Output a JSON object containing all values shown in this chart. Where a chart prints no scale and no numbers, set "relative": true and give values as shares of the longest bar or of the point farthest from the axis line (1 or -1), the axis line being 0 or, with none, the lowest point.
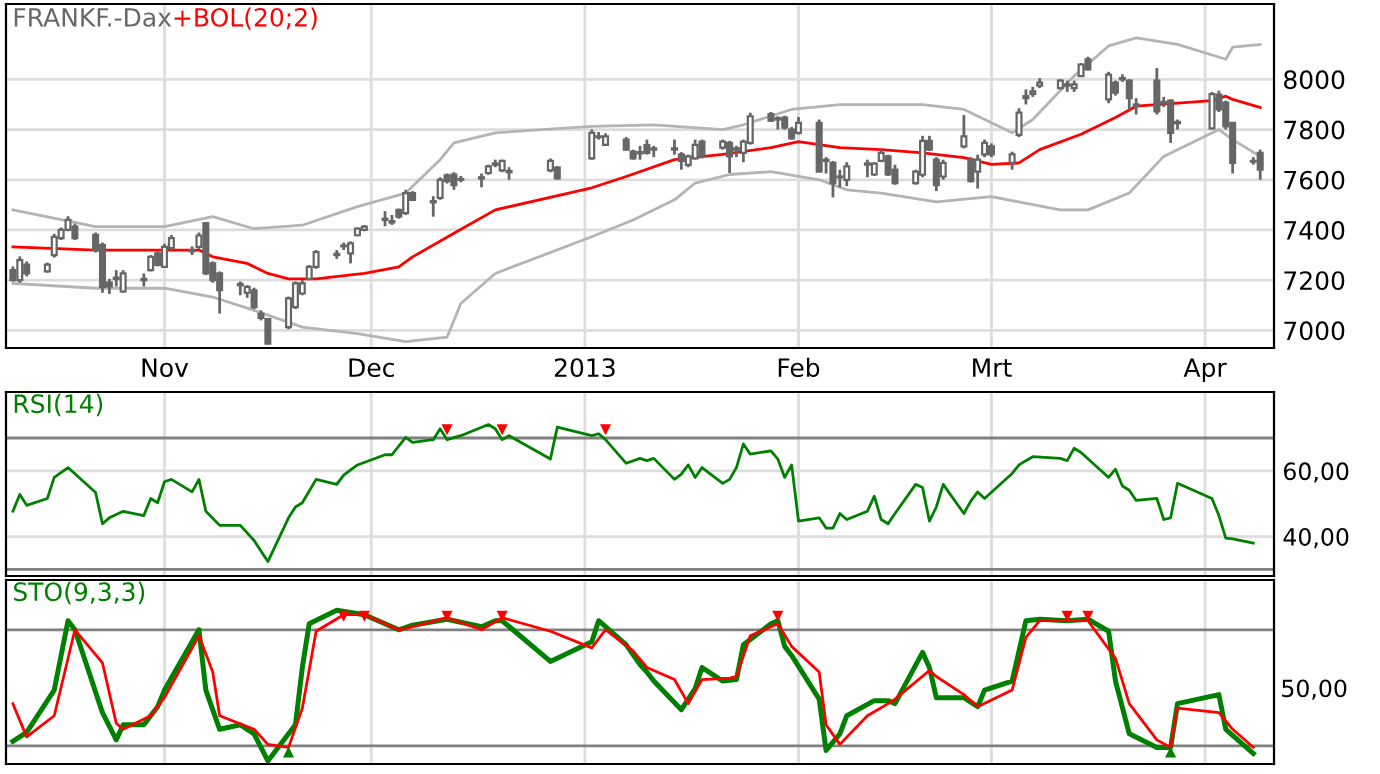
{
  "chart_data": [
    {
      "type": "candlestick",
      "title": "FRANKF.-Dax",
      "legend": "top left",
      "grid": true,
      "xlim": [
        "2012-10-09",
        "2013-04-11"
      ],
      "ylim": [
        6930,
        8300
      ],
      "xticks": [
        {
          "value": "2012-11-01",
          "label": "Nov"
        },
        {
          "value": "2012-12-01",
          "label": "Dec"
        },
        {
          "value": "2013-01-01",
          "label": "2013"
        },
        {
          "value": "2013-02-01",
          "label": "Feb"
        },
        {
          "value": "2013-03-01",
          "label": "Mrt"
        },
        {
          "value": "2013-04-01",
          "label": "Apr"
        }
      ],
      "yticks": [
        7000,
        7200,
        7400,
        7600,
        7800,
        8000
      ],
      "x": [
        "2012-10-10",
        "2012-10-11",
        "2012-10-12",
        "2012-10-15",
        "2012-10-16",
        "2012-10-17",
        "2012-10-18",
        "2012-10-19",
        "2012-10-22",
        "2012-10-23",
        "2012-10-24",
        "2012-10-25",
        "2012-10-26",
        "2012-10-29",
        "2012-10-30",
        "2012-10-31",
        "2012-11-01",
        "2012-11-02",
        "2012-11-05",
        "2012-11-06",
        "2012-11-07",
        "2012-11-08",
        "2012-11-09",
        "2012-11-12",
        "2012-11-13",
        "2012-11-14",
        "2012-11-15",
        "2012-11-16",
        "2012-11-19",
        "2012-11-20",
        "2012-11-21",
        "2012-11-22",
        "2012-11-23",
        "2012-11-26",
        "2012-11-27",
        "2012-11-28",
        "2012-11-29",
        "2012-11-30",
        "2012-12-03",
        "2012-12-04",
        "2012-12-05",
        "2012-12-06",
        "2012-12-07",
        "2012-12-10",
        "2012-12-11",
        "2012-12-12",
        "2012-12-13",
        "2012-12-14",
        "2012-12-17",
        "2012-12-18",
        "2012-12-19",
        "2012-12-20",
        "2012-12-21",
        "2012-12-27",
        "2012-12-28",
        "2013-01-02",
        "2013-01-03",
        "2013-01-04",
        "2013-01-07",
        "2013-01-08",
        "2013-01-09",
        "2013-01-10",
        "2013-01-11",
        "2013-01-14",
        "2013-01-15",
        "2013-01-16",
        "2013-01-17",
        "2013-01-18",
        "2013-01-21",
        "2013-01-22",
        "2013-01-23",
        "2013-01-24",
        "2013-01-25",
        "2013-01-28",
        "2013-01-29",
        "2013-01-30",
        "2013-01-31",
        "2013-02-01",
        "2013-02-04",
        "2013-02-05",
        "2013-02-06",
        "2013-02-07",
        "2013-02-08",
        "2013-02-11",
        "2013-02-12",
        "2013-02-13",
        "2013-02-14",
        "2013-02-15",
        "2013-02-18",
        "2013-02-19",
        "2013-02-20",
        "2013-02-21",
        "2013-02-22",
        "2013-02-25",
        "2013-02-26",
        "2013-02-27",
        "2013-02-28",
        "2013-03-01",
        "2013-03-04",
        "2013-03-05",
        "2013-03-06",
        "2013-03-07",
        "2013-03-08",
        "2013-03-11",
        "2013-03-12",
        "2013-03-13",
        "2013-03-14",
        "2013-03-15",
        "2013-03-18",
        "2013-03-19",
        "2013-03-20",
        "2013-03-21",
        "2013-03-22",
        "2013-03-25",
        "2013-03-26",
        "2013-03-27",
        "2013-03-28",
        "2013-04-02",
        "2013-04-03",
        "2013-04-04",
        "2013-04-05",
        "2013-04-08",
        "2013-04-09"
      ],
      "ohlc": [
        [
          7240,
          7255,
          7195,
          7200
        ],
        [
          7200,
          7295,
          7190,
          7280
        ],
        [
          7262,
          7275,
          7215,
          7227
        ],
        [
          7235,
          7270,
          7230,
          7262
        ],
        [
          7300,
          7385,
          7290,
          7373
        ],
        [
          7368,
          7410,
          7360,
          7400
        ],
        [
          7400,
          7455,
          7395,
          7440
        ],
        [
          7413,
          7425,
          7360,
          7368
        ],
        [
          7381,
          7390,
          7310,
          7320
        ],
        [
          7341,
          7350,
          7150,
          7173
        ],
        [
          7190,
          7205,
          7145,
          7175
        ],
        [
          7205,
          7240,
          7175,
          7210
        ],
        [
          7155,
          7240,
          7150,
          7227
        ],
        [
          7200,
          7227,
          7175,
          7205
        ],
        [
          7240,
          7300,
          7235,
          7293
        ],
        [
          7307,
          7315,
          7255,
          7261
        ],
        [
          7253,
          7345,
          7250,
          7333
        ],
        [
          7328,
          7380,
          7320,
          7368
        ],
        [
          7315,
          7335,
          7300,
          7320
        ],
        [
          7333,
          7390,
          7325,
          7378
        ],
        [
          7427,
          7430,
          7220,
          7227
        ],
        [
          7267,
          7275,
          7190,
          7200
        ],
        [
          7227,
          7235,
          7067,
          7160
        ],
        [
          7180,
          7195,
          7140,
          7185
        ],
        [
          7150,
          7180,
          7130,
          7173
        ],
        [
          7160,
          7170,
          7085,
          7093
        ],
        [
          7066,
          7080,
          7040,
          7050
        ],
        [
          7045,
          7050,
          6945,
          6947
        ],
        [
          7013,
          7135,
          7005,
          7128
        ],
        [
          7093,
          7195,
          7085,
          7187
        ],
        [
          7147,
          7200,
          7140,
          7187
        ],
        [
          7205,
          7260,
          7200,
          7253
        ],
        [
          7253,
          7320,
          7245,
          7312
        ],
        [
          7300,
          7320,
          7285,
          7305
        ],
        [
          7335,
          7350,
          7320,
          7338
        ],
        [
          7307,
          7355,
          7267,
          7347
        ],
        [
          7379,
          7410,
          7375,
          7405
        ],
        [
          7400,
          7420,
          7395,
          7413
        ],
        [
          7440,
          7475,
          7415,
          7445
        ],
        [
          7430,
          7460,
          7420,
          7435
        ],
        [
          7480,
          7485,
          7445,
          7453
        ],
        [
          7467,
          7560,
          7460,
          7547
        ],
        [
          7547,
          7555,
          7515,
          7520
        ],
        [
          7510,
          7535,
          7453,
          7515
        ],
        [
          7528,
          7610,
          7520,
          7600
        ],
        [
          7618,
          7625,
          7585,
          7595
        ],
        [
          7621,
          7630,
          7560,
          7579
        ],
        [
          7600,
          7615,
          7590,
          7603
        ],
        [
          7605,
          7625,
          7570,
          7610
        ],
        [
          7627,
          7660,
          7620,
          7653
        ],
        [
          7660,
          7680,
          7650,
          7665
        ],
        [
          7637,
          7680,
          7630,
          7675
        ],
        [
          7630,
          7650,
          7600,
          7635
        ],
        [
          7637,
          7685,
          7630,
          7675
        ],
        [
          7648,
          7655,
          7600,
          7605
        ],
        [
          7685,
          7800,
          7680,
          7787
        ],
        [
          7770,
          7790,
          7760,
          7773
        ],
        [
          7739,
          7785,
          7735,
          7773
        ],
        [
          7760,
          7770,
          7715,
          7720
        ],
        [
          7712,
          7720,
          7680,
          7685
        ],
        [
          7705,
          7735,
          7680,
          7710
        ],
        [
          7738,
          7760,
          7700,
          7707
        ],
        [
          7720,
          7735,
          7690,
          7725
        ],
        [
          7720,
          7760,
          7700,
          7725
        ],
        [
          7701,
          7710,
          7640,
          7675
        ],
        [
          7659,
          7700,
          7650,
          7693
        ],
        [
          7685,
          7760,
          7680,
          7739
        ],
        [
          7752,
          7760,
          7685,
          7693
        ],
        [
          7728,
          7760,
          7720,
          7752
        ],
        [
          7747,
          7755,
          7627,
          7693
        ],
        [
          7720,
          7735,
          7690,
          7725
        ],
        [
          7707,
          7760,
          7670,
          7752
        ],
        [
          7747,
          7867,
          7740,
          7853
        ],
        [
          7861,
          7870,
          7830,
          7835
        ],
        [
          7840,
          7853,
          7800,
          7845
        ],
        [
          7848,
          7855,
          7800,
          7808
        ],
        [
          7800,
          7810,
          7760,
          7765
        ],
        [
          7787,
          7850,
          7780,
          7827
        ],
        [
          7827,
          7840,
          7630,
          7632
        ],
        [
          7675,
          7690,
          7625,
          7680
        ],
        [
          7667,
          7675,
          7530,
          7587
        ],
        [
          7610,
          7640,
          7570,
          7613
        ],
        [
          7600,
          7670,
          7575,
          7653
        ],
        [
          7660,
          7680,
          7610,
          7665
        ],
        [
          7621,
          7670,
          7615,
          7664
        ],
        [
          7675,
          7720,
          7670,
          7707
        ],
        [
          7693,
          7700,
          7615,
          7621
        ],
        [
          7640,
          7660,
          7580,
          7587
        ],
        [
          7587,
          7640,
          7580,
          7632
        ],
        [
          7620,
          7775,
          7610,
          7755
        ],
        [
          7755,
          7775,
          7715,
          7720
        ],
        [
          7680,
          7690,
          7555,
          7579
        ],
        [
          7613,
          7680,
          7600,
          7667
        ],
        [
          7733,
          7858,
          7725,
          7773
        ],
        [
          7680,
          7690,
          7590,
          7595
        ],
        [
          7632,
          7700,
          7565,
          7680
        ],
        [
          7701,
          7760,
          7690,
          7747
        ],
        [
          7733,
          7745,
          7690,
          7701
        ],
        [
          7667,
          7712,
          7640,
          7701
        ],
        [
          7779,
          7885,
          7770,
          7867
        ],
        [
          7925,
          7960,
          7900,
          7933
        ],
        [
          7942,
          7970,
          7930,
          7952
        ],
        [
          7975,
          8005,
          7965,
          7987
        ],
        [
          7965,
          8000,
          7960,
          7995
        ],
        [
          7975,
          7995,
          7950,
          7980
        ],
        [
          7965,
          7995,
          7950,
          7980
        ],
        [
          8013,
          8065,
          8010,
          8059
        ],
        [
          8080,
          8090,
          8035,
          8040
        ],
        [
          7920,
          8030,
          7905,
          8019
        ],
        [
          7987,
          7995,
          7935,
          7947
        ],
        [
          8000,
          8020,
          7990,
          8005
        ],
        [
          7995,
          8000,
          7880,
          7925
        ],
        [
          7893,
          7925,
          7860,
          7900
        ],
        [
          7995,
          8045,
          7860,
          7872
        ],
        [
          7905,
          7930,
          7890,
          7910
        ],
        [
          7915,
          7920,
          7747,
          7787
        ],
        [
          7825,
          7840,
          7800,
          7830
        ],
        [
          7805,
          7950,
          7800,
          7941
        ],
        [
          7939,
          7955,
          7870,
          7880
        ],
        [
          7907,
          7915,
          7800,
          7813
        ],
        [
          7827,
          7830,
          7625,
          7667
        ],
        [
          7672,
          7690,
          7660,
          7675
        ],
        [
          7707,
          7720,
          7600,
          7640
        ]
      ],
      "series": [
        {
          "type": "line",
          "color": "#b4b4b4",
          "x": [
            "2012-10-10",
            "2012-10-22",
            "2012-11-01",
            "2012-11-08",
            "2012-11-14",
            "2012-11-21",
            "2012-11-29",
            "2012-12-06",
            "2012-12-11",
            "2012-12-13",
            "2012-12-19",
            "2013-01-02",
            "2013-01-11",
            "2013-01-21",
            "2013-01-24",
            "2013-01-31",
            "2013-02-07",
            "2013-02-15",
            "2013-02-19",
            "2013-02-25",
            "2013-03-04",
            "2013-03-07",
            "2013-03-13",
            "2013-03-18",
            "2013-03-22",
            "2013-03-28",
            "2013-04-04",
            "2013-04-05",
            "2013-04-09"
          ],
          "values": [
            7480,
            7413,
            7413,
            7453,
            7405,
            7419,
            7493,
            7547,
            7680,
            7747,
            7787,
            7813,
            7819,
            7800,
            7819,
            7880,
            7899,
            7899,
            7899,
            7880,
            7787,
            7840,
            8013,
            8133,
            8165,
            8139,
            8080,
            8128,
            8139
          ]
        },
        {
          "type": "line",
          "color": "#b4b4b4",
          "x": [
            "2012-10-10",
            "2012-10-22",
            "2012-11-01",
            "2012-11-08",
            "2012-11-14",
            "2012-11-21",
            "2012-11-29",
            "2012-12-06",
            "2012-12-12",
            "2012-12-14",
            "2012-12-19",
            "2013-01-02",
            "2013-01-08",
            "2013-01-14",
            "2013-01-17",
            "2013-01-22",
            "2013-01-28",
            "2013-02-04",
            "2013-02-08",
            "2013-02-13",
            "2013-02-21",
            "2013-03-01",
            "2013-03-11",
            "2013-03-15",
            "2013-03-21",
            "2013-03-26",
            "2013-04-03",
            "2013-04-05",
            "2013-04-09"
          ],
          "values": [
            7187,
            7168,
            7168,
            7133,
            7080,
            7013,
            6987,
            6955,
            6973,
            7107,
            7227,
            7373,
            7440,
            7520,
            7587,
            7621,
            7632,
            7600,
            7560,
            7547,
            7512,
            7533,
            7480,
            7480,
            7547,
            7693,
            7800,
            7760,
            7693
          ]
        },
        {
          "type": "line",
          "name": "+BOL(20;2)",
          "color": "#ff0000",
          "x": [
            "2012-10-10",
            "2012-10-22",
            "2012-11-06",
            "2012-11-08",
            "2012-11-13",
            "2012-11-16",
            "2012-11-19",
            "2012-11-23",
            "2012-11-30",
            "2012-12-05",
            "2012-12-07",
            "2012-12-13",
            "2012-12-19",
            "2013-01-02",
            "2013-01-07",
            "2013-01-14",
            "2013-01-21",
            "2013-01-28",
            "2013-02-01",
            "2013-02-07",
            "2013-02-13",
            "2013-02-19",
            "2013-02-25",
            "2013-03-01",
            "2013-03-05",
            "2013-03-08",
            "2013-03-14",
            "2013-03-19",
            "2013-03-22",
            "2013-04-02",
            "2013-04-04",
            "2013-04-05",
            "2013-04-09"
          ],
          "values": [
            7333,
            7320,
            7320,
            7293,
            7267,
            7227,
            7205,
            7205,
            7227,
            7253,
            7293,
            7387,
            7480,
            7568,
            7613,
            7680,
            7701,
            7728,
            7752,
            7728,
            7720,
            7707,
            7688,
            7661,
            7667,
            7720,
            7781,
            7848,
            7893,
            7915,
            7933,
            7920,
            7888
          ]
        }
      ]
    },
    {
      "type": "line",
      "legend": "top left",
      "grid": true,
      "tick_labels": "y",
      "xlim": [
        "2012-10-09",
        "2013-04-11"
      ],
      "ylim": [
        28,
        84
      ],
      "xticks": [
        {
          "value": "2012-11-01",
          "label": null
        },
        {
          "value": "2012-12-01",
          "label": null
        },
        {
          "value": "2013-01-01",
          "label": null
        },
        {
          "value": "2013-02-01",
          "label": null
        },
        {
          "value": "2013-03-01",
          "label": null
        },
        {
          "value": "2013-04-01",
          "label": null
        }
      ],
      "yticks": [
        {
          "value": 40,
          "label": "40,00"
        },
        {
          "value": 60,
          "label": "60,00"
        }
      ],
      "ref_lines": [
        {
          "axis": "y",
          "value": 70,
          "color": "#808080"
        },
        {
          "axis": "y",
          "value": 30,
          "color": "#808080"
        }
      ],
      "series": [
        {
          "type": "line",
          "name": "RSI(14)",
          "color": "#008000",
          "x": [
            "2012-10-10",
            "2012-10-11",
            "2012-10-12",
            "2012-10-15",
            "2012-10-16",
            "2012-10-18",
            "2012-10-22",
            "2012-10-23",
            "2012-10-24",
            "2012-10-26",
            "2012-10-29",
            "2012-10-30",
            "2012-10-31",
            "2012-11-01",
            "2012-11-02",
            "2012-11-05",
            "2012-11-06",
            "2012-11-07",
            "2012-11-09",
            "2012-11-12",
            "2012-11-14",
            "2012-11-16",
            "2012-11-19",
            "2012-11-20",
            "2012-11-21",
            "2012-11-23",
            "2012-11-26",
            "2012-11-27",
            "2012-11-29",
            "2012-12-03",
            "2012-12-04",
            "2012-12-06",
            "2012-12-07",
            "2012-12-10",
            "2012-12-11",
            "2012-12-12",
            "2012-12-14",
            "2012-12-18",
            "2012-12-19",
            "2012-12-20",
            "2012-12-21",
            "2012-12-27",
            "2012-12-28",
            "2013-01-02",
            "2013-01-03",
            "2013-01-04",
            "2013-01-07",
            "2013-01-09",
            "2013-01-10",
            "2013-01-11",
            "2013-01-14",
            "2013-01-15",
            "2013-01-16",
            "2013-01-17",
            "2013-01-18",
            "2013-01-21",
            "2013-01-22",
            "2013-01-23",
            "2013-01-24",
            "2013-01-25",
            "2013-01-28",
            "2013-01-29",
            "2013-01-30",
            "2013-01-31",
            "2013-02-01",
            "2013-02-04",
            "2013-02-05",
            "2013-02-06",
            "2013-02-07",
            "2013-02-08",
            "2013-02-11",
            "2013-02-12",
            "2013-02-13",
            "2013-02-14",
            "2013-02-15",
            "2013-02-18",
            "2013-02-19",
            "2013-02-20",
            "2013-02-21",
            "2013-02-22",
            "2013-02-25",
            "2013-02-26",
            "2013-02-27",
            "2013-02-28",
            "2013-03-04",
            "2013-03-05",
            "2013-03-06",
            "2013-03-07",
            "2013-03-11",
            "2013-03-12",
            "2013-03-13",
            "2013-03-14",
            "2013-03-18",
            "2013-03-19",
            "2013-03-20",
            "2013-03-21",
            "2013-03-22",
            "2013-03-25",
            "2013-03-26",
            "2013-03-27",
            "2013-03-28",
            "2013-04-02",
            "2013-04-03",
            "2013-04-04",
            "2013-04-05",
            "2013-04-08"
          ],
          "values": [
            47.7,
            52.8,
            49.5,
            51.6,
            58,
            61,
            53.4,
            43.9,
            45.7,
            47.7,
            46.4,
            51.6,
            50.3,
            56.7,
            57.4,
            53.6,
            57.4,
            47.7,
            43.4,
            43.4,
            38.8,
            32.4,
            45.7,
            49,
            50.3,
            57.4,
            55.9,
            58.7,
            61.8,
            64.9,
            64.9,
            70.2,
            68.7,
            69.5,
            72.8,
            69.5,
            70.7,
            74.1,
            72.8,
            69.5,
            70.7,
            63.6,
            73.3,
            70.7,
            71.3,
            69.5,
            62.3,
            63.8,
            63.1,
            63.8,
            57.4,
            59,
            61.8,
            58,
            61,
            56.2,
            57.4,
            61,
            68.2,
            65.1,
            66.1,
            63.6,
            58,
            61.8,
            44.7,
            45.7,
            42.6,
            42.6,
            47,
            45.2,
            47.7,
            52.3,
            45.2,
            43.9,
            47,
            55.9,
            54.9,
            44.7,
            49,
            55.9,
            47,
            50.8,
            53.6,
            51.6,
            59.2,
            61.8,
            63.1,
            64.3,
            63.8,
            63.1,
            66.9,
            65.6,
            58,
            60.5,
            55.4,
            54.1,
            51,
            51.6,
            45.2,
            45.7,
            56.2,
            51.6,
            46.4,
            39.5,
            39.3,
            38
          ]
        },
        {
          "type": "scatter",
          "marker": "triangle",
          "color": "#ff0000",
          "x": [
            "2012-12-12",
            "2012-12-20",
            "2013-01-04"
          ],
          "values": [
            72.5,
            72.5,
            72.5
          ]
        }
      ]
    },
    {
      "type": "line",
      "legend": "top left",
      "grid": true,
      "tick_labels": false,
      "relative": true,
      "xlim": [
        "2012-10-09",
        "2013-04-11"
      ],
      "xticks": [
        {
          "value": "2012-11-01",
          "label": null
        },
        {
          "value": "2012-12-01",
          "label": null
        },
        {
          "value": "2013-01-01",
          "label": null
        },
        {
          "value": "2013-02-01",
          "label": null
        },
        {
          "value": "2013-03-01",
          "label": null
        },
        {
          "value": "2013-04-01",
          "label": null
        }
      ],
      "annotations": [
        "50,00"
      ],
      "ref_lines": [
        {
          "axis": "y",
          "value": 0.87,
          "color": "#808080"
        },
        {
          "axis": "y",
          "value": 0.1,
          "color": "#808080"
        }
      ],
      "series": [
        {
          "type": "line",
          "name": "STO(9,3,3)",
          "color": "#008000",
          "x": [
            "2012-10-10",
            "2012-10-12",
            "2012-10-16",
            "2012-10-18",
            "2012-10-19",
            "2012-10-23",
            "2012-10-25",
            "2012-10-26",
            "2012-10-29",
            "2012-10-31",
            "2012-11-01",
            "2012-11-05",
            "2012-11-06",
            "2012-11-07",
            "2012-11-09",
            "2012-11-12",
            "2012-11-14",
            "2012-11-15",
            "2012-11-16",
            "2012-11-20",
            "2012-11-21",
            "2012-11-22",
            "2012-11-26",
            "2012-11-30",
            "2012-12-03",
            "2012-12-05",
            "2012-12-07",
            "2012-12-12",
            "2012-12-17",
            "2012-12-19",
            "2012-12-20",
            "2012-12-27",
            "2013-01-02",
            "2013-01-03",
            "2013-01-07",
            "2013-01-09",
            "2013-01-10",
            "2013-01-11",
            "2013-01-15",
            "2013-01-17",
            "2013-01-18",
            "2013-01-21",
            "2013-01-23",
            "2013-01-24",
            "2013-01-28",
            "2013-01-29",
            "2013-01-30",
            "2013-01-31",
            "2013-02-04",
            "2013-02-05",
            "2013-02-07",
            "2013-02-08",
            "2013-02-12",
            "2013-02-14",
            "2013-02-15",
            "2013-02-19",
            "2013-02-20",
            "2013-02-21",
            "2013-02-25",
            "2013-02-27",
            "2013-02-28",
            "2013-03-04",
            "2013-03-06",
            "2013-03-08",
            "2013-03-12",
            "2013-03-15",
            "2013-03-18",
            "2013-03-19",
            "2013-03-21",
            "2013-03-25",
            "2013-03-27",
            "2013-03-28",
            "2013-04-03",
            "2013-04-04",
            "2013-04-08"
          ],
          "values": [
            0.13,
            0.19,
            0.47,
            0.93,
            0.87,
            0.32,
            0.14,
            0.24,
            0.24,
            0.36,
            0.47,
            0.79,
            0.87,
            0.47,
            0.21,
            0.24,
            0.18,
            0.09,
            0,
            0.24,
            0.62,
            0.91,
            1,
            0.97,
            0.91,
            0.87,
            0.9,
            0.94,
            0.89,
            0.93,
            0.93,
            0.66,
            0.79,
            0.93,
            0.77,
            0.64,
            0.59,
            0.53,
            0.34,
            0.48,
            0.62,
            0.53,
            0.54,
            0.77,
            0.91,
            0.93,
            0.76,
            0.7,
            0.41,
            0.07,
            0.18,
            0.3,
            0.4,
            0.4,
            0.38,
            0.72,
            0.62,
            0.42,
            0.42,
            0.36,
            0.47,
            0.53,
            0.93,
            0.94,
            0.93,
            0.94,
            0.86,
            0.53,
            0.18,
            0.09,
            0.09,
            0.38,
            0.44,
            0.21,
            0.05
          ]
        },
        {
          "type": "line",
          "color": "#ff0000",
          "x": [
            "2012-10-10",
            "2012-10-12",
            "2012-10-16",
            "2012-10-19",
            "2012-10-23",
            "2012-10-25",
            "2012-10-26",
            "2012-10-30",
            "2012-11-01",
            "2012-11-06",
            "2012-11-08",
            "2012-11-09",
            "2012-11-14",
            "2012-11-16",
            "2012-11-19",
            "2012-11-21",
            "2012-11-23",
            "2012-11-27",
            "2012-11-30",
            "2012-12-05",
            "2012-12-07",
            "2012-12-12",
            "2012-12-17",
            "2012-12-20",
            "2012-12-27",
            "2013-01-02",
            "2013-01-04",
            "2013-01-08",
            "2013-01-10",
            "2013-01-14",
            "2013-01-16",
            "2013-01-18",
            "2013-01-22",
            "2013-01-23",
            "2013-01-25",
            "2013-01-29",
            "2013-01-31",
            "2013-02-04",
            "2013-02-05",
            "2013-02-07",
            "2013-02-11",
            "2013-02-14",
            "2013-02-15",
            "2013-02-20",
            "2013-02-21",
            "2013-02-25",
            "2013-02-27",
            "2013-03-04",
            "2013-03-06",
            "2013-03-08",
            "2013-03-12",
            "2013-03-15",
            "2013-03-19",
            "2013-03-21",
            "2013-03-25",
            "2013-03-27",
            "2013-03-28",
            "2013-04-03",
            "2013-04-05",
            "2013-04-08"
          ],
          "values": [
            0.38,
            0.16,
            0.3,
            0.87,
            0.65,
            0.25,
            0.21,
            0.3,
            0.42,
            0.83,
            0.59,
            0.3,
            0.21,
            0.11,
            0.09,
            0.35,
            0.86,
            0.97,
            0.97,
            0.87,
            0.89,
            0.95,
            0.87,
            0.95,
            0.86,
            0.75,
            0.87,
            0.73,
            0.62,
            0.54,
            0.38,
            0.54,
            0.55,
            0.56,
            0.83,
            0.91,
            0.76,
            0.59,
            0.24,
            0.11,
            0.3,
            0.38,
            0.41,
            0.6,
            0.56,
            0.44,
            0.36,
            0.47,
            0.82,
            0.93,
            0.93,
            0.93,
            0.68,
            0.38,
            0.14,
            0.09,
            0.35,
            0.32,
            0.21,
            0.09
          ]
        },
        {
          "type": "scatter",
          "marker": "triangle",
          "color": "#ff0000",
          "x": [
            "2012-11-27",
            "2012-11-30",
            "2012-12-12",
            "2012-12-20",
            "2013-01-29",
            "2013-03-12",
            "2013-03-15"
          ],
          "values": [
            0.96,
            0.96,
            0.96,
            0.96,
            0.96,
            0.96,
            0.96
          ]
        },
        {
          "type": "scatter",
          "marker": "triangle",
          "color": "#008000",
          "x": [
            "2012-11-19",
            "2013-03-27"
          ],
          "values": [
            0.06,
            0.06
          ]
        }
      ]
    }
  ]
}
